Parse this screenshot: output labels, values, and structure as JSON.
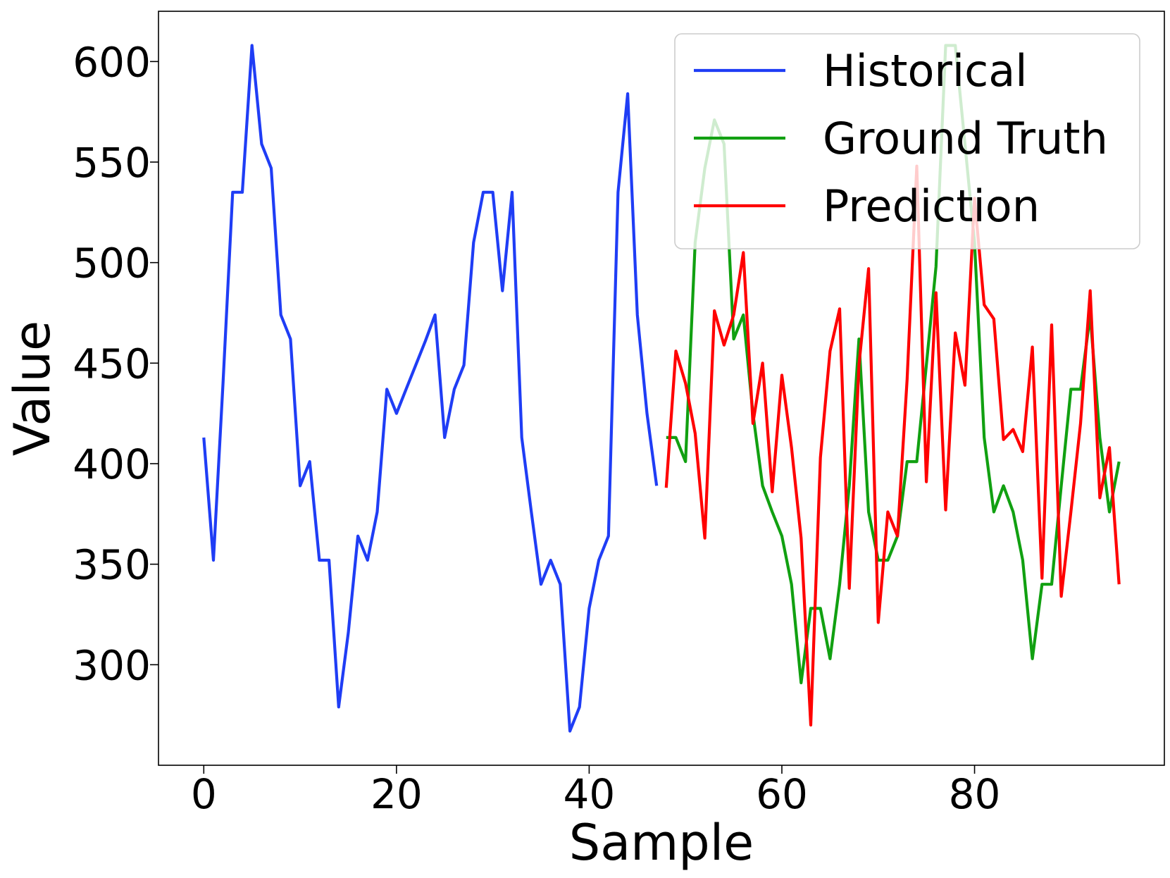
{
  "chart_data": {
    "type": "line",
    "title": "",
    "xlabel": "Sample",
    "ylabel": "Value",
    "xlim": [
      -4.7,
      99.7
    ],
    "ylim": [
      250,
      625
    ],
    "xticks": [
      0,
      20,
      40,
      60,
      80
    ],
    "yticks": [
      300,
      350,
      400,
      450,
      500,
      550,
      600
    ],
    "grid": false,
    "legend_position": "top-right",
    "series": [
      {
        "name": "Historical",
        "color": "#1f3df5",
        "x": [
          0,
          1,
          2,
          3,
          4,
          5,
          6,
          7,
          8,
          9,
          10,
          11,
          12,
          13,
          14,
          15,
          16,
          17,
          18,
          19,
          20,
          21,
          22,
          23,
          24,
          25,
          26,
          27,
          28,
          29,
          30,
          31,
          32,
          33,
          34,
          35,
          36,
          37,
          38,
          39,
          40,
          41,
          42,
          43,
          44,
          45,
          46,
          47
        ],
        "values": [
          413,
          352,
          440,
          535,
          535,
          608,
          559,
          547,
          474,
          462,
          389,
          401,
          352,
          352,
          279,
          316,
          364,
          352,
          376,
          437,
          425,
          437,
          449,
          461,
          474,
          413,
          437,
          449,
          510,
          535,
          535,
          486,
          535,
          413,
          376,
          340,
          352,
          340,
          267,
          279,
          328,
          352,
          364,
          535,
          584,
          474,
          425,
          389
        ]
      },
      {
        "name": "Ground Truth",
        "color": "#11a011",
        "x": [
          48,
          49,
          50,
          51,
          52,
          53,
          54,
          55,
          56,
          57,
          58,
          59,
          60,
          61,
          62,
          63,
          64,
          65,
          66,
          67,
          68,
          69,
          70,
          71,
          72,
          73,
          74,
          75,
          76,
          77,
          78,
          79,
          80,
          81,
          82,
          83,
          84,
          85,
          86,
          87,
          88,
          89,
          90,
          91,
          92,
          93,
          94,
          95
        ],
        "values": [
          413,
          413,
          401,
          510,
          547,
          571,
          559,
          462,
          474,
          425,
          389,
          376,
          364,
          340,
          291,
          328,
          328,
          303,
          340,
          389,
          462,
          376,
          352,
          352,
          364,
          401,
          401,
          449,
          498,
          608,
          608,
          559,
          510,
          413,
          376,
          389,
          376,
          352,
          303,
          340,
          340,
          389,
          437,
          437,
          474,
          413,
          376,
          401
        ]
      },
      {
        "name": "Prediction",
        "color": "#ff0000",
        "x": [
          48,
          49,
          50,
          51,
          52,
          53,
          54,
          55,
          56,
          57,
          58,
          59,
          60,
          61,
          62,
          63,
          64,
          65,
          66,
          67,
          68,
          69,
          70,
          71,
          72,
          73,
          74,
          75,
          76,
          77,
          78,
          79,
          80,
          81,
          82,
          83,
          84,
          85,
          86,
          87,
          88,
          89,
          90,
          91,
          92,
          93,
          94,
          95
        ],
        "values": [
          388,
          456,
          440,
          415,
          363,
          476,
          459,
          474,
          505,
          420,
          450,
          386,
          444,
          408,
          363,
          270,
          403,
          456,
          477,
          338,
          449,
          497,
          321,
          376,
          364,
          442,
          548,
          391,
          485,
          377,
          465,
          439,
          532,
          479,
          472,
          412,
          417,
          406,
          458,
          343,
          469,
          334,
          376,
          420,
          486,
          383,
          408,
          340
        ]
      }
    ]
  }
}
